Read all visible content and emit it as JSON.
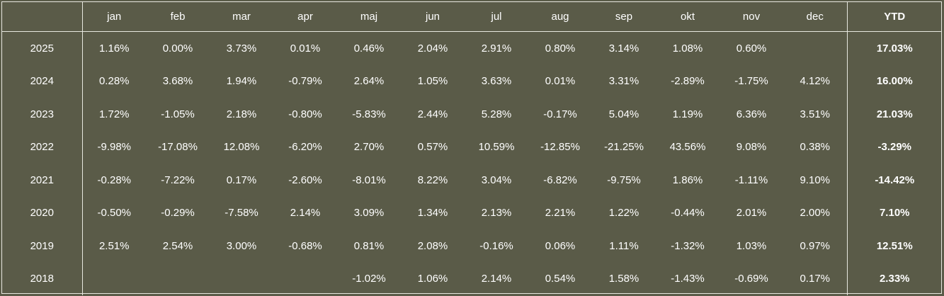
{
  "header": {
    "year_label": "",
    "months": [
      "jan",
      "feb",
      "mar",
      "apr",
      "maj",
      "jun",
      "jul",
      "aug",
      "sep",
      "okt",
      "nov",
      "dec"
    ],
    "ytd_label": "YTD"
  },
  "rows": [
    {
      "year": "2025",
      "values": [
        "1.16%",
        "0.00%",
        "3.73%",
        "0.01%",
        "0.46%",
        "2.04%",
        "2.91%",
        "0.80%",
        "3.14%",
        "1.08%",
        "0.60%",
        ""
      ],
      "ytd": "17.03%"
    },
    {
      "year": "2024",
      "values": [
        "0.28%",
        "3.68%",
        "1.94%",
        "-0.79%",
        "2.64%",
        "1.05%",
        "3.63%",
        "0.01%",
        "3.31%",
        "-2.89%",
        "-1.75%",
        "4.12%"
      ],
      "ytd": "16.00%"
    },
    {
      "year": "2023",
      "values": [
        "1.72%",
        "-1.05%",
        "2.18%",
        "-0.80%",
        "-5.83%",
        "2.44%",
        "5.28%",
        "-0.17%",
        "5.04%",
        "1.19%",
        "6.36%",
        "3.51%"
      ],
      "ytd": "21.03%"
    },
    {
      "year": "2022",
      "values": [
        "-9.98%",
        "-17.08%",
        "12.08%",
        "-6.20%",
        "2.70%",
        "0.57%",
        "10.59%",
        "-12.85%",
        "-21.25%",
        "43.56%",
        "9.08%",
        "0.38%"
      ],
      "ytd": "-3.29%"
    },
    {
      "year": "2021",
      "values": [
        "-0.28%",
        "-7.22%",
        "0.17%",
        "-2.60%",
        "-8.01%",
        "8.22%",
        "3.04%",
        "-6.82%",
        "-9.75%",
        "1.86%",
        "-1.11%",
        "9.10%"
      ],
      "ytd": "-14.42%"
    },
    {
      "year": "2020",
      "values": [
        "-0.50%",
        "-0.29%",
        "-7.58%",
        "2.14%",
        "3.09%",
        "1.34%",
        "2.13%",
        "2.21%",
        "1.22%",
        "-0.44%",
        "2.01%",
        "2.00%"
      ],
      "ytd": "7.10%"
    },
    {
      "year": "2019",
      "values": [
        "2.51%",
        "2.54%",
        "3.00%",
        "-0.68%",
        "0.81%",
        "2.08%",
        "-0.16%",
        "0.06%",
        "1.11%",
        "-1.32%",
        "1.03%",
        "0.97%"
      ],
      "ytd": "12.51%"
    },
    {
      "year": "2018",
      "values": [
        "",
        "",
        "",
        "",
        "-1.02%",
        "1.06%",
        "2.14%",
        "0.54%",
        "1.58%",
        "-1.43%",
        "-0.69%",
        "0.17%"
      ],
      "ytd": "2.33%"
    }
  ],
  "colors": {
    "background": "#5a5b48",
    "text": "#ffffff",
    "border": "#e8e8e0"
  }
}
